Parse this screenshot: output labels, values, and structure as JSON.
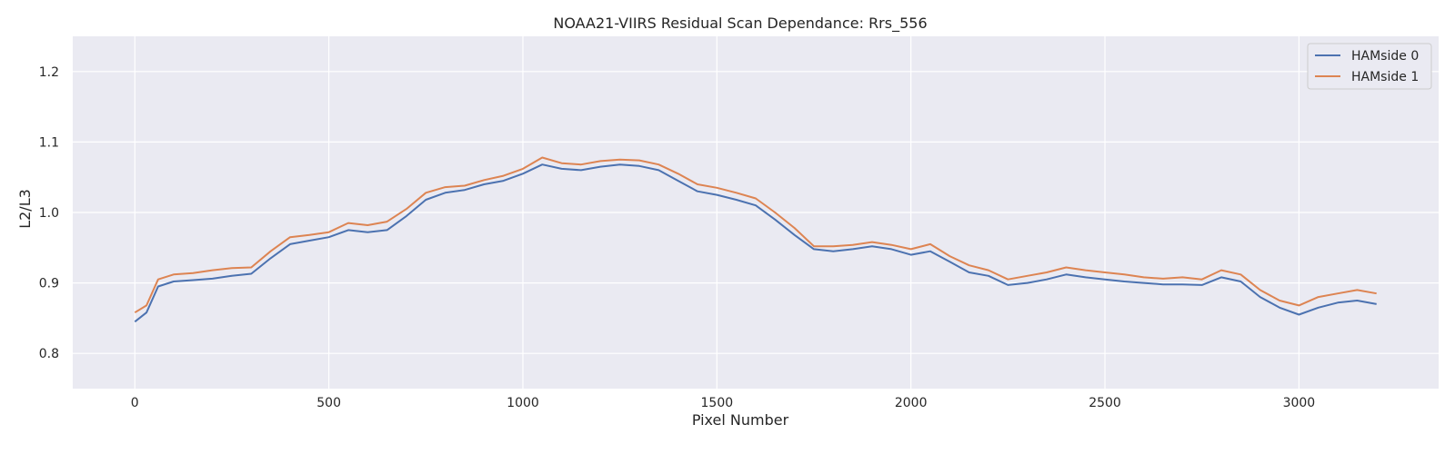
{
  "chart_data": {
    "type": "line",
    "title": "NOAA21-VIIRS Residual Scan Dependance: Rrs_556",
    "xlabel": "Pixel Number",
    "ylabel": "L2/L3",
    "xlim": [
      -160,
      3360
    ],
    "ylim": [
      0.75,
      1.25
    ],
    "xticks": [
      0,
      500,
      1000,
      1500,
      2000,
      2500,
      3000
    ],
    "xtick_labels": [
      "0",
      "500",
      "1000",
      "1500",
      "2000",
      "2500",
      "3000"
    ],
    "yticks": [
      0.8,
      0.9,
      1.0,
      1.1,
      1.2
    ],
    "ytick_labels": [
      "0.8",
      "0.9",
      "1.0",
      "1.1",
      "1.2"
    ],
    "grid": true,
    "legend_position": "top-right",
    "background_color": "#eaeaf2",
    "grid_color": "#ffffff",
    "series": [
      {
        "name": "HAMside 0",
        "color": "#4c72b0",
        "x": [
          0,
          30,
          60,
          100,
          150,
          200,
          250,
          300,
          350,
          400,
          450,
          500,
          550,
          600,
          650,
          700,
          750,
          800,
          850,
          900,
          950,
          1000,
          1050,
          1100,
          1150,
          1200,
          1250,
          1300,
          1350,
          1400,
          1450,
          1500,
          1550,
          1600,
          1650,
          1700,
          1750,
          1800,
          1850,
          1900,
          1950,
          2000,
          2050,
          2100,
          2150,
          2200,
          2250,
          2300,
          2350,
          2400,
          2450,
          2500,
          2550,
          2600,
          2650,
          2700,
          2750,
          2800,
          2850,
          2900,
          2950,
          3000,
          3050,
          3100,
          3150,
          3200
        ],
        "y": [
          0.845,
          0.858,
          0.895,
          0.902,
          0.904,
          0.906,
          0.91,
          0.913,
          0.935,
          0.955,
          0.96,
          0.965,
          0.975,
          0.972,
          0.975,
          0.995,
          1.018,
          1.028,
          1.032,
          1.04,
          1.045,
          1.055,
          1.068,
          1.062,
          1.06,
          1.065,
          1.068,
          1.066,
          1.06,
          1.045,
          1.03,
          1.025,
          1.018,
          1.01,
          0.99,
          0.968,
          0.948,
          0.945,
          0.948,
          0.952,
          0.948,
          0.94,
          0.945,
          0.93,
          0.915,
          0.91,
          0.897,
          0.9,
          0.905,
          0.912,
          0.908,
          0.905,
          0.902,
          0.9,
          0.898,
          0.898,
          0.897,
          0.908,
          0.902,
          0.88,
          0.865,
          0.855,
          0.865,
          0.872,
          0.875,
          0.87
        ]
      },
      {
        "name": "HAMside 1",
        "color": "#dd8452",
        "x": [
          0,
          30,
          60,
          100,
          150,
          200,
          250,
          300,
          350,
          400,
          450,
          500,
          550,
          600,
          650,
          700,
          750,
          800,
          850,
          900,
          950,
          1000,
          1050,
          1100,
          1150,
          1200,
          1250,
          1300,
          1350,
          1400,
          1450,
          1500,
          1550,
          1600,
          1650,
          1700,
          1750,
          1800,
          1850,
          1900,
          1950,
          2000,
          2050,
          2100,
          2150,
          2200,
          2250,
          2300,
          2350,
          2400,
          2450,
          2500,
          2550,
          2600,
          2650,
          2700,
          2750,
          2800,
          2850,
          2900,
          2950,
          3000,
          3050,
          3100,
          3150,
          3200
        ],
        "y": [
          0.858,
          0.868,
          0.905,
          0.912,
          0.914,
          0.918,
          0.921,
          0.922,
          0.945,
          0.965,
          0.968,
          0.972,
          0.985,
          0.982,
          0.987,
          1.005,
          1.028,
          1.036,
          1.038,
          1.046,
          1.052,
          1.062,
          1.078,
          1.07,
          1.068,
          1.073,
          1.075,
          1.074,
          1.068,
          1.055,
          1.04,
          1.035,
          1.028,
          1.02,
          1.0,
          0.978,
          0.952,
          0.952,
          0.954,
          0.958,
          0.954,
          0.948,
          0.955,
          0.938,
          0.925,
          0.918,
          0.905,
          0.91,
          0.915,
          0.922,
          0.918,
          0.915,
          0.912,
          0.908,
          0.906,
          0.908,
          0.905,
          0.918,
          0.912,
          0.89,
          0.875,
          0.868,
          0.88,
          0.885,
          0.89,
          0.885
        ]
      }
    ]
  }
}
